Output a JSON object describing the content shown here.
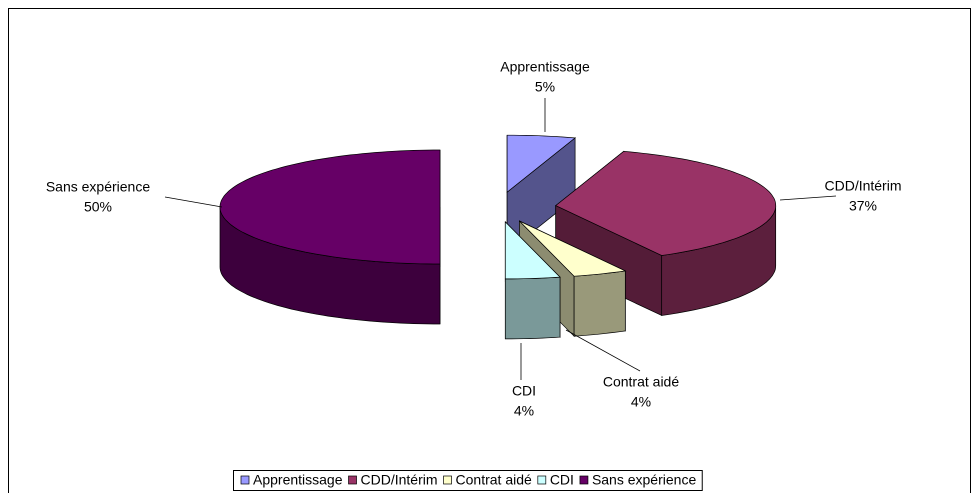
{
  "chart_data": {
    "type": "pie3d",
    "categories": [
      "Apprentissage",
      "CDD/Intérim",
      "Contrat aidé",
      "CDI",
      "Sans expérience"
    ],
    "values": [
      5,
      37,
      4,
      4,
      50
    ],
    "value_labels": [
      "5%",
      "37%",
      "4%",
      "4%",
      "50%"
    ],
    "colors": [
      "#9999ff",
      "#993366",
      "#ffffcc",
      "#ccffff",
      "#660066"
    ],
    "legend": "bottom"
  }
}
